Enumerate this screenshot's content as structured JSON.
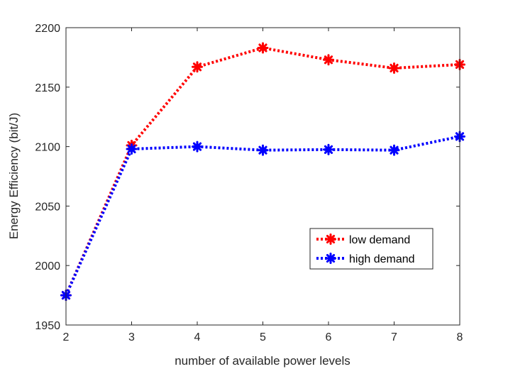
{
  "chart_data": {
    "type": "line",
    "title": "",
    "xlabel": "number of available power levels",
    "ylabel": "Energy Efficiency (bit/J)",
    "x": [
      2,
      3,
      4,
      5,
      6,
      7,
      8
    ],
    "xlim": [
      2,
      8
    ],
    "ylim": [
      1950,
      2200
    ],
    "xticks": [
      "2",
      "3",
      "4",
      "5",
      "6",
      "7",
      "8"
    ],
    "yticks": [
      "1950",
      "2000",
      "2050",
      "2100",
      "2150",
      "2200"
    ],
    "grid": false,
    "legend_position": "lower-right",
    "series": [
      {
        "name": "low demand",
        "color": "#ff0000",
        "marker": "asterisk",
        "line_style": "dotted",
        "values": [
          1975,
          2101,
          2167,
          2183,
          2173,
          2166,
          2169
        ]
      },
      {
        "name": "high demand",
        "color": "#0000ff",
        "marker": "asterisk",
        "line_style": "dotted",
        "values": [
          1975,
          2098,
          2100,
          2097,
          2097.5,
          2097,
          2108.5
        ]
      }
    ]
  }
}
